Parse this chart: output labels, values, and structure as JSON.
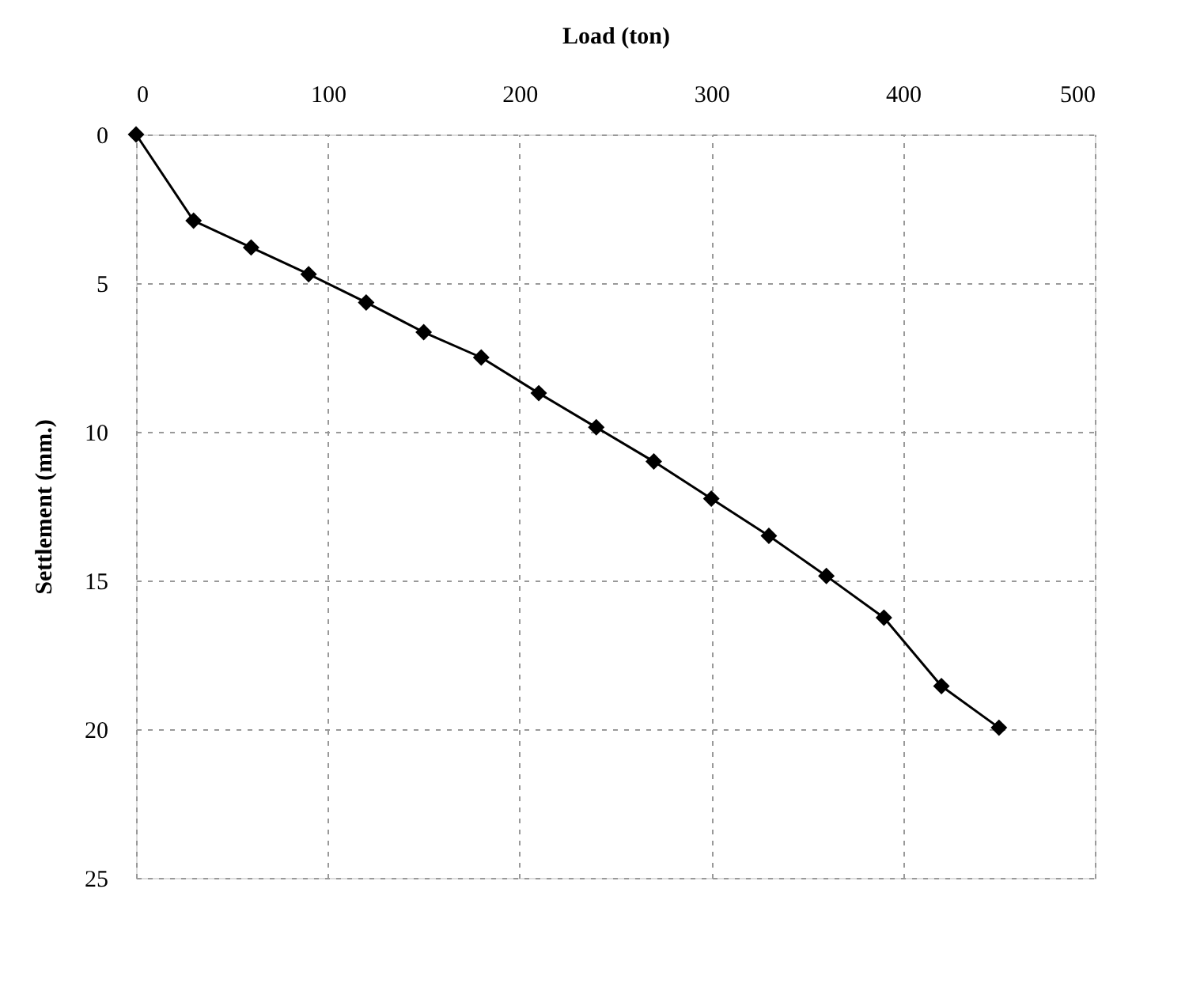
{
  "chart_data": {
    "type": "line",
    "xlabel": "Load (ton)",
    "ylabel": "Settlement (mm.)",
    "x": [
      0,
      30,
      60,
      90,
      120,
      150,
      180,
      210,
      240,
      270,
      300,
      330,
      360,
      390,
      420,
      450
    ],
    "series": [
      {
        "color": "#000000",
        "values": [
          0,
          2.9,
          3.8,
          4.7,
          5.65,
          6.65,
          7.5,
          8.7,
          9.85,
          11.0,
          12.25,
          13.5,
          14.85,
          16.25,
          18.55,
          19.95
        ]
      }
    ],
    "xlim": [
      0,
      500
    ],
    "xticks": [
      0,
      100,
      200,
      300,
      400,
      500
    ],
    "ylim": [
      25,
      0
    ],
    "yticks": [
      0,
      5,
      10,
      15,
      20,
      25
    ],
    "grid": true,
    "marker": "diamond",
    "line_style": "solid"
  }
}
